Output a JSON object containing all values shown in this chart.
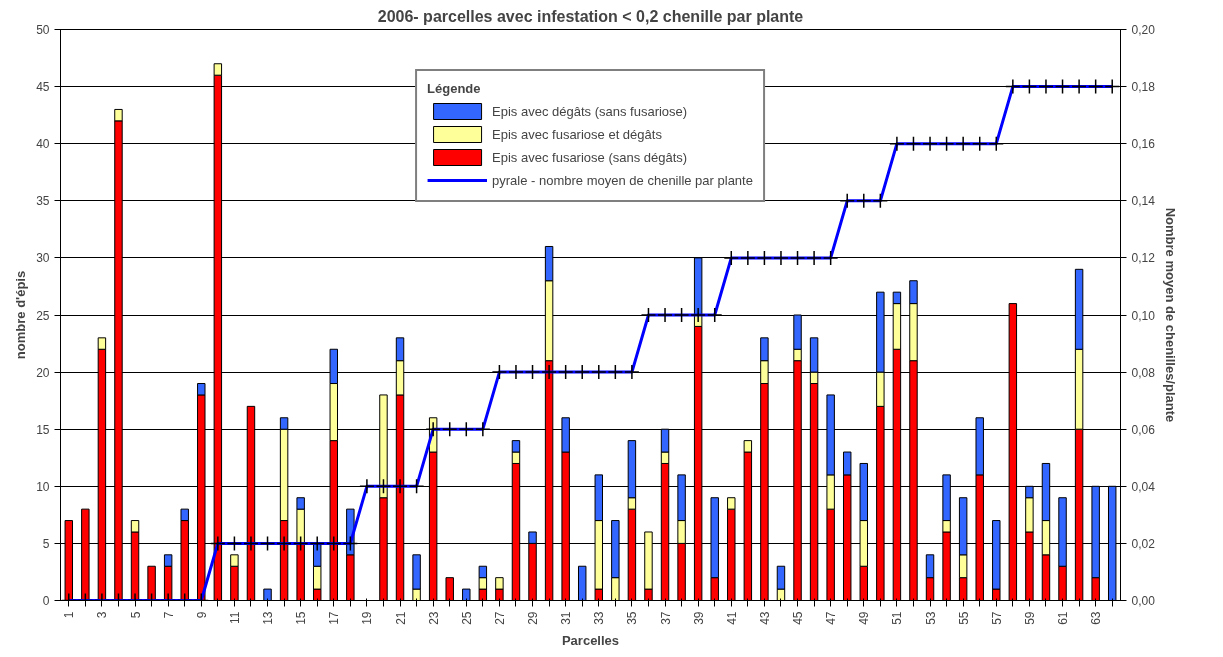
{
  "chart_data": {
    "type": "bar",
    "stacked": true,
    "title": "2006- parcelles avec infestation < 0,2 chenille par plante",
    "xlabel": "Parcelles",
    "ylabel": "nombre d'épis",
    "y2label": "Nombre moyen de chenilles/plante",
    "legend_title": "Légende",
    "legend": "top",
    "categories": [
      "1",
      null,
      "3",
      null,
      "5",
      null,
      "7",
      null,
      "9",
      null,
      "11",
      null,
      "13",
      null,
      "15",
      null,
      "17",
      null,
      "19",
      null,
      "21",
      null,
      "23",
      null,
      "25",
      null,
      "27",
      null,
      "29",
      null,
      "31",
      null,
      "33",
      null,
      "35",
      null,
      "37",
      null,
      "39",
      null,
      "41",
      null,
      "43",
      null,
      "45",
      null,
      "47",
      null,
      "49",
      null,
      "51",
      null,
      "53",
      null,
      "55",
      null,
      "57",
      null,
      "59",
      null,
      "61",
      null,
      "63",
      null
    ],
    "series": [
      {
        "name": "Epis avec fusariose (sans dégâts)",
        "color": "#ff0000",
        "values": [
          7,
          8,
          22,
          42,
          6,
          3,
          3,
          7,
          18,
          46,
          3,
          17,
          null,
          7,
          5,
          1,
          14,
          4,
          null,
          9,
          18,
          null,
          13,
          2,
          null,
          1,
          1,
          12,
          5,
          21,
          13,
          null,
          1,
          null,
          8,
          1,
          12,
          5,
          24,
          2,
          8,
          13,
          19,
          null,
          21,
          19,
          8,
          11,
          3,
          17,
          22,
          21,
          2,
          6,
          2,
          11,
          1,
          26,
          6,
          4,
          3,
          15,
          2,
          null
        ]
      },
      {
        "name": "Epis avec fusariose et dégâts",
        "color": "#ffff99",
        "values": [
          null,
          null,
          1,
          1,
          1,
          null,
          null,
          null,
          null,
          1,
          1,
          null,
          null,
          8,
          3,
          2,
          5,
          null,
          null,
          9,
          3,
          1,
          3,
          null,
          null,
          1,
          1,
          1,
          null,
          7,
          null,
          null,
          6,
          2,
          1,
          5,
          1,
          2,
          1,
          null,
          1,
          1,
          2,
          1,
          1,
          1,
          3,
          null,
          4,
          3,
          4,
          5,
          null,
          1,
          2,
          null,
          null,
          null,
          3,
          3,
          null,
          7,
          null,
          null
        ]
      },
      {
        "name": "Epis avec dégâts (sans fusariose)",
        "color": "#3366ff",
        "values": [
          null,
          null,
          null,
          null,
          null,
          null,
          1,
          1,
          1,
          null,
          null,
          null,
          1,
          1,
          1,
          2,
          3,
          4,
          null,
          null,
          2,
          3,
          null,
          null,
          1,
          1,
          null,
          1,
          1,
          3,
          3,
          3,
          4,
          5,
          5,
          null,
          2,
          4,
          5,
          7,
          null,
          null,
          2,
          2,
          3,
          3,
          7,
          2,
          5,
          7,
          1,
          2,
          2,
          4,
          5,
          5,
          6,
          null,
          1,
          5,
          6,
          7,
          8,
          10
        ]
      },
      {
        "name": "pyrale - nombre moyen de chenille par plante",
        "type": "line",
        "axis": "y2",
        "color": "#0000ff",
        "marker": "cross",
        "values": [
          0,
          0,
          0,
          0,
          0,
          0,
          0,
          0,
          0,
          0.02,
          0.02,
          0.02,
          0.02,
          0.02,
          0.02,
          0.02,
          0.02,
          0.02,
          0.04,
          0.04,
          0.04,
          0.04,
          0.06,
          0.06,
          0.06,
          0.06,
          0.08,
          0.08,
          0.08,
          0.08,
          0.08,
          0.08,
          0.08,
          0.08,
          0.08,
          0.1,
          0.1,
          0.1,
          0.1,
          0.1,
          0.12,
          0.12,
          0.12,
          0.12,
          0.12,
          0.12,
          0.12,
          0.14,
          0.14,
          0.14,
          0.16,
          0.16,
          0.16,
          0.16,
          0.16,
          0.16,
          0.16,
          0.18,
          0.18,
          0.18,
          0.18,
          0.18,
          0.18,
          0.18
        ]
      }
    ],
    "ylim": [
      0,
      50
    ],
    "yticks": [
      0,
      5,
      10,
      15,
      20,
      25,
      30,
      35,
      40,
      45,
      50
    ],
    "y2lim": [
      0,
      0.2
    ],
    "y2ticks": [
      {
        "value": 0,
        "label": "0,00"
      },
      {
        "value": 0.02,
        "label": "0,02"
      },
      {
        "value": 0.04,
        "label": "0,04"
      },
      {
        "value": 0.06,
        "label": "0,06"
      },
      {
        "value": 0.08,
        "label": "0,08"
      },
      {
        "value": 0.1,
        "label": "0,10"
      },
      {
        "value": 0.12,
        "label": "0,12"
      },
      {
        "value": 0.14,
        "label": "0,14"
      },
      {
        "value": 0.16,
        "label": "0,16"
      },
      {
        "value": 0.18,
        "label": "0,18"
      },
      {
        "value": 0.2,
        "label": "0,20"
      }
    ],
    "grid": "y"
  }
}
